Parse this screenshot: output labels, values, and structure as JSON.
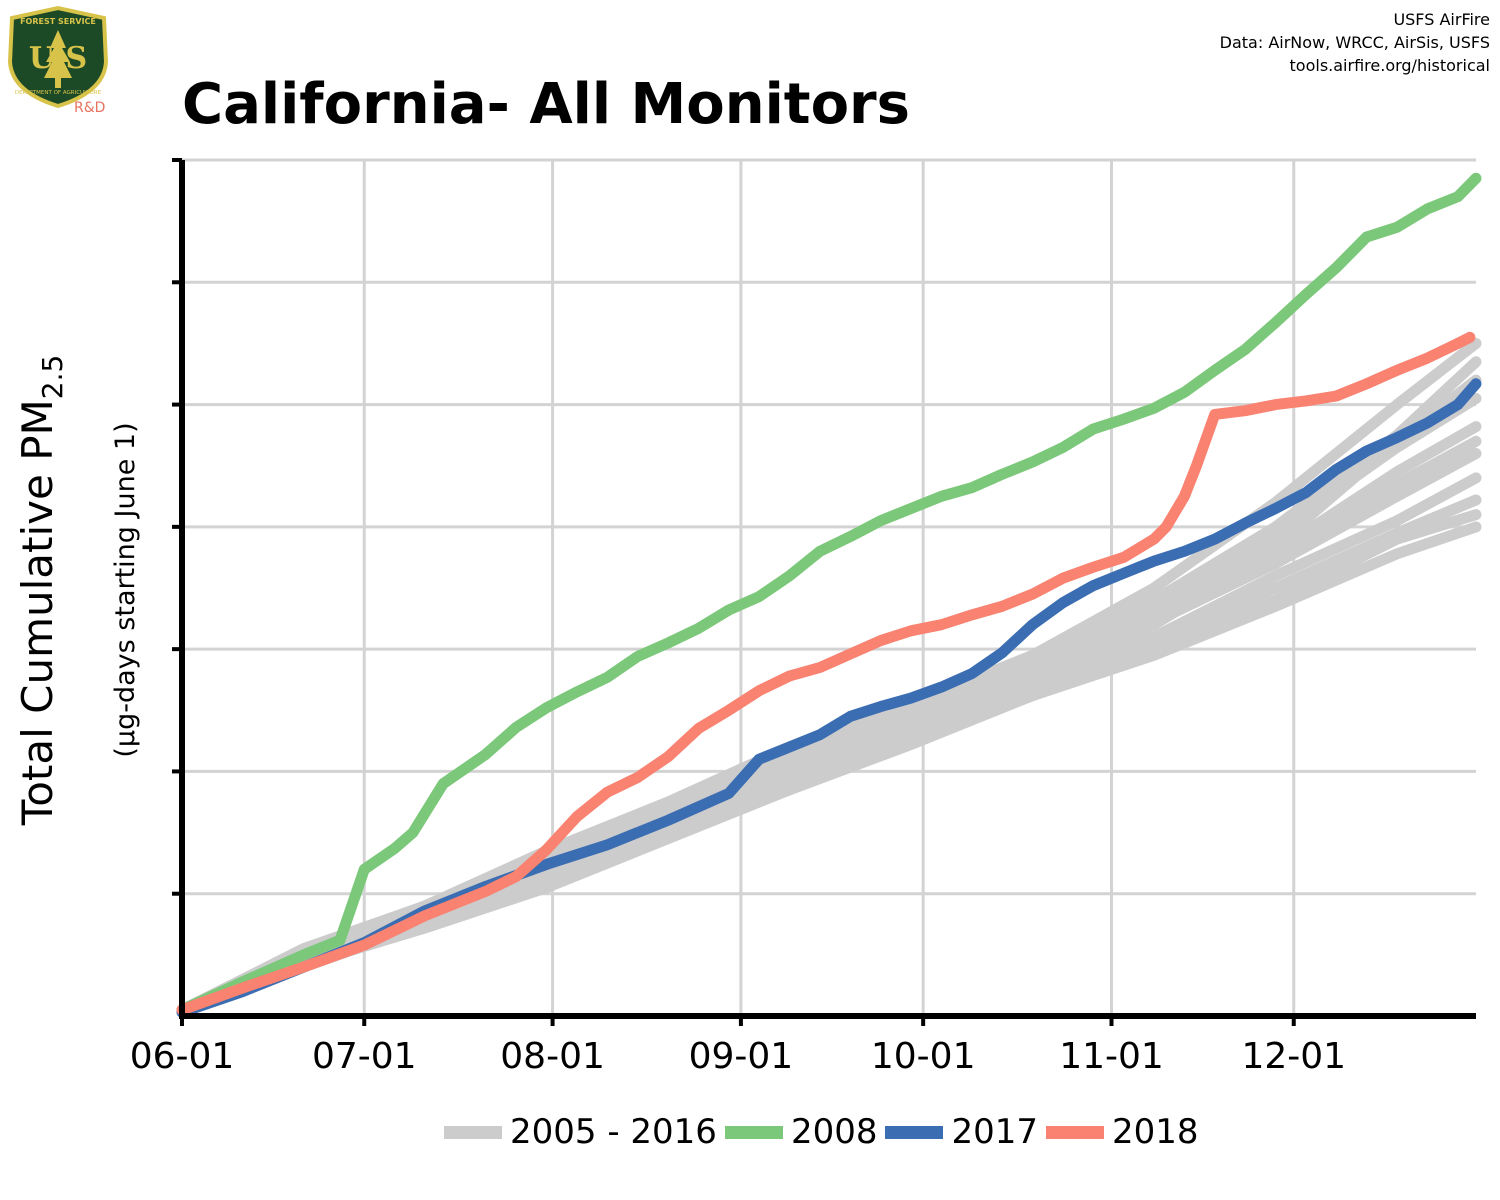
{
  "header": {
    "title": "California- All Monitors",
    "credits": [
      "USFS AirFire",
      "Data: AirNow, WRCC, AirSis, USFS",
      "tools.airfire.org/historical"
    ]
  },
  "logo": {
    "top_text": "FOREST SERVICE",
    "letters": "U S",
    "bottom_text": "DEPARTMENT OF AGRICULTURE",
    "tag": "R&D"
  },
  "colors": {
    "history": "#cccccc",
    "y2008": "#7cc87a",
    "y2017": "#3b6db2",
    "y2018": "#f98271",
    "grid": "#d3d3d3",
    "axis": "#000000",
    "logo_tag": "#e8735f"
  },
  "chart_data": {
    "type": "line",
    "title": "California- All Monitors",
    "ylabel": "Total Cumulative PM",
    "ylabel_subscript": "2.5",
    "ylabel_sub": "(µg-days starting June 1)",
    "xlabel": "",
    "x_ticks": [
      "06-01",
      "07-01",
      "08-01",
      "09-01",
      "10-01",
      "11-01",
      "12-01"
    ],
    "x_tick_days": [
      0,
      30,
      61,
      92,
      122,
      153,
      183
    ],
    "xlim": [
      0,
      213
    ],
    "ylim": [
      0,
      7
    ],
    "y_tick_labels_shown": false,
    "grid": true,
    "legend_position": "bottom",
    "legend": [
      "2005 - 2016",
      "2008",
      "2017",
      "2018"
    ],
    "series": [
      {
        "name": "2008",
        "role": "y2008",
        "x": [
          0,
          10,
          20,
          26,
          30,
          35,
          38,
          43,
          50,
          55,
          60,
          65,
          70,
          75,
          80,
          85,
          90,
          95,
          100,
          105,
          110,
          115,
          120,
          125,
          130,
          135,
          140,
          145,
          150,
          155,
          160,
          165,
          170,
          175,
          180,
          185,
          190,
          195,
          200,
          205,
          210,
          213
        ],
        "values": [
          0.05,
          0.28,
          0.5,
          0.62,
          1.2,
          1.37,
          1.5,
          1.9,
          2.14,
          2.36,
          2.52,
          2.65,
          2.77,
          2.94,
          3.05,
          3.17,
          3.32,
          3.43,
          3.6,
          3.8,
          3.92,
          4.05,
          4.15,
          4.25,
          4.32,
          4.43,
          4.53,
          4.65,
          4.8,
          4.88,
          4.97,
          5.1,
          5.28,
          5.45,
          5.67,
          5.9,
          6.12,
          6.37,
          6.45,
          6.6,
          6.7,
          6.85
        ]
      },
      {
        "name": "2017",
        "role": "y2017",
        "x": [
          0,
          10,
          20,
          30,
          40,
          50,
          60,
          70,
          80,
          90,
          95,
          100,
          105,
          110,
          115,
          120,
          125,
          130,
          135,
          140,
          145,
          150,
          155,
          160,
          165,
          170,
          175,
          180,
          185,
          190,
          195,
          200,
          205,
          210,
          213
        ],
        "values": [
          0.03,
          0.2,
          0.4,
          0.6,
          0.86,
          1.06,
          1.24,
          1.4,
          1.6,
          1.82,
          2.1,
          2.2,
          2.3,
          2.45,
          2.53,
          2.6,
          2.69,
          2.8,
          2.97,
          3.2,
          3.38,
          3.52,
          3.62,
          3.72,
          3.8,
          3.9,
          4.03,
          4.15,
          4.28,
          4.47,
          4.62,
          4.73,
          4.85,
          5.0,
          5.17
        ]
      },
      {
        "name": "2018",
        "role": "y2018",
        "x": [
          0,
          10,
          20,
          30,
          40,
          50,
          55,
          60,
          65,
          70,
          75,
          80,
          85,
          90,
          95,
          100,
          105,
          110,
          115,
          120,
          125,
          130,
          135,
          140,
          145,
          150,
          155,
          160,
          162,
          165,
          167,
          170,
          175,
          180,
          185,
          190,
          195,
          200,
          205,
          210,
          212
        ],
        "values": [
          0.05,
          0.23,
          0.4,
          0.58,
          0.82,
          1.02,
          1.14,
          1.36,
          1.63,
          1.83,
          1.95,
          2.12,
          2.35,
          2.5,
          2.66,
          2.78,
          2.85,
          2.96,
          3.07,
          3.15,
          3.2,
          3.28,
          3.35,
          3.45,
          3.58,
          3.67,
          3.75,
          3.9,
          4.0,
          4.25,
          4.5,
          4.92,
          4.95,
          5.0,
          5.03,
          5.07,
          5.17,
          5.28,
          5.38,
          5.5,
          5.55
        ]
      }
    ],
    "history_series": {
      "name": "2005 - 2016",
      "role": "history",
      "x": [
        0,
        20,
        40,
        60,
        80,
        100,
        120,
        140,
        160,
        180,
        200,
        213
      ],
      "runs": [
        [
          0.05,
          0.55,
          0.9,
          1.35,
          1.75,
          2.2,
          2.55,
          2.9,
          3.35,
          3.95,
          4.65,
          5.05
        ],
        [
          0.05,
          0.45,
          0.8,
          1.2,
          1.6,
          2.0,
          2.4,
          2.8,
          3.25,
          3.75,
          4.35,
          4.7
        ],
        [
          0.05,
          0.42,
          0.72,
          1.05,
          1.45,
          1.85,
          2.3,
          2.7,
          3.1,
          3.6,
          4.05,
          4.4
        ],
        [
          0.05,
          0.52,
          0.9,
          1.3,
          1.7,
          2.15,
          2.55,
          2.95,
          3.5,
          4.2,
          5.0,
          5.5
        ],
        [
          0.05,
          0.48,
          0.85,
          1.15,
          1.55,
          1.95,
          2.4,
          2.85,
          3.3,
          3.85,
          4.7,
          5.2
        ],
        [
          0.05,
          0.5,
          0.88,
          1.25,
          1.6,
          2.0,
          2.35,
          2.75,
          3.2,
          3.8,
          4.45,
          4.82
        ],
        [
          0.05,
          0.4,
          0.75,
          1.1,
          1.48,
          1.85,
          2.22,
          2.62,
          3.0,
          3.4,
          3.9,
          4.1
        ],
        [
          0.05,
          0.45,
          0.78,
          1.12,
          1.5,
          1.9,
          2.25,
          2.62,
          2.95,
          3.35,
          3.78,
          4.0
        ],
        [
          0.05,
          0.47,
          0.82,
          1.18,
          1.55,
          1.95,
          2.35,
          2.7,
          3.05,
          3.5,
          3.95,
          4.22
        ],
        [
          0.05,
          0.5,
          0.9,
          1.3,
          1.7,
          2.1,
          2.45,
          2.8,
          3.22,
          3.7,
          4.25,
          4.6
        ],
        [
          0.05,
          0.5,
          0.86,
          1.27,
          1.66,
          2.06,
          2.48,
          2.9,
          3.4,
          4.0,
          4.75,
          5.35
        ]
      ]
    }
  }
}
